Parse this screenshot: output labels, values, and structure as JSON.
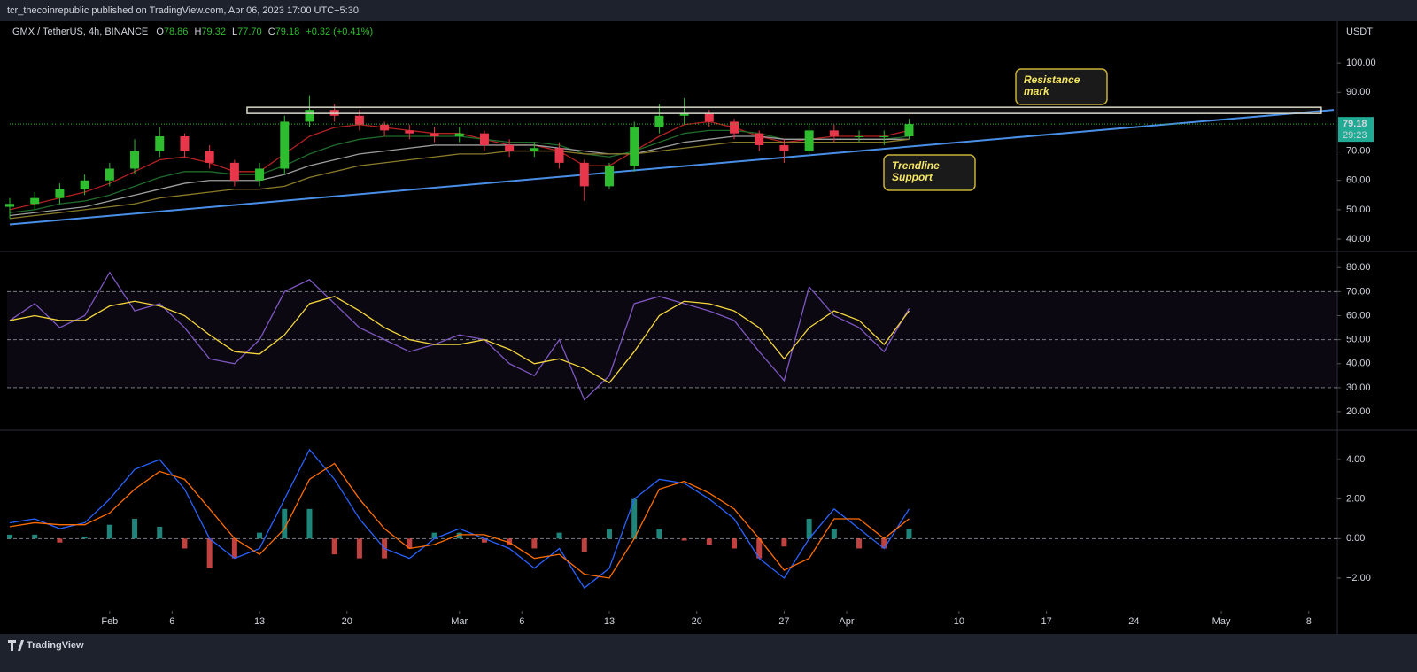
{
  "header": {
    "text": "tcr_thecoinrepublic published on TradingView.com, Apr 06, 2023 17:00 UTC+5:30"
  },
  "footer": {
    "brand": "TradingView"
  },
  "chart_data": [
    {
      "type": "candlestick",
      "symbol": "GMX / TetherUS, 4h, BINANCE",
      "ohlc_legend": [
        {
          "key": "O",
          "value": "78.86"
        },
        {
          "key": "H",
          "value": "79.32"
        },
        {
          "key": "L",
          "value": "77.70"
        },
        {
          "key": "C",
          "value": "79.18"
        }
      ],
      "change": "+0.32 (+0.41%)",
      "currency": "USDT",
      "last_price": 79.18,
      "countdown": "29:23",
      "x": [
        "2023-01-24",
        "2023-01-26",
        "2023-01-28",
        "2023-01-30",
        "2023-02-01",
        "2023-02-03",
        "2023-02-05",
        "2023-02-07",
        "2023-02-09",
        "2023-02-11",
        "2023-02-13",
        "2023-02-15",
        "2023-02-17",
        "2023-02-19",
        "2023-02-21",
        "2023-02-23",
        "2023-02-25",
        "2023-02-27",
        "2023-03-01",
        "2023-03-03",
        "2023-03-05",
        "2023-03-07",
        "2023-03-09",
        "2023-03-11",
        "2023-03-13",
        "2023-03-15",
        "2023-03-17",
        "2023-03-19",
        "2023-03-21",
        "2023-03-23",
        "2023-03-25",
        "2023-03-27",
        "2023-03-29",
        "2023-03-31",
        "2023-04-02",
        "2023-04-04",
        "2023-04-06"
      ],
      "open": [
        51,
        52,
        54,
        57,
        60,
        64,
        70,
        75,
        70,
        66,
        60,
        64,
        80,
        84,
        82,
        79,
        77,
        76,
        75,
        76,
        72,
        70,
        71,
        66,
        58,
        65,
        78,
        82,
        83,
        80,
        76,
        72,
        70,
        77,
        75,
        75,
        75
      ],
      "high": [
        54,
        56,
        59,
        62,
        66,
        74,
        78,
        76,
        72,
        67,
        66,
        82,
        89,
        86,
        84,
        80,
        79,
        78,
        78,
        77,
        74,
        73,
        73,
        67,
        66,
        80,
        86,
        88,
        84,
        81,
        77,
        74,
        79,
        79,
        77,
        77,
        81
      ],
      "low": [
        47,
        50,
        52,
        55,
        58,
        62,
        68,
        68,
        64,
        58,
        58,
        62,
        78,
        80,
        77,
        75,
        74,
        73,
        73,
        70,
        68,
        68,
        64,
        53,
        57,
        63,
        76,
        79,
        78,
        74,
        70,
        66,
        69,
        73,
        73,
        72,
        74
      ],
      "close": [
        52,
        54,
        57,
        60,
        64,
        70,
        75,
        70,
        66,
        60,
        64,
        80,
        84,
        82,
        79,
        77,
        76,
        75,
        76,
        72,
        70,
        71,
        66,
        58,
        65,
        78,
        82,
        83,
        80,
        76,
        72,
        70,
        77,
        75,
        75,
        75,
        79.18
      ],
      "up_color": "#2ebd2e",
      "down_color": "#e8374a",
      "series": [
        {
          "color": "#b22222",
          "values": [
            50,
            52,
            54,
            56,
            59,
            63,
            67,
            68,
            66,
            63,
            63,
            69,
            75,
            78,
            79,
            78,
            77,
            76,
            76,
            74,
            72,
            72,
            70,
            65,
            65,
            70,
            75,
            79,
            80,
            78,
            75,
            73,
            74,
            75,
            75,
            75,
            77
          ]
        },
        {
          "color": "#1f6b2a",
          "values": [
            49,
            50,
            52,
            53,
            55,
            58,
            61,
            63,
            63,
            62,
            62,
            65,
            69,
            72,
            74,
            75,
            75,
            75,
            75,
            74,
            73,
            73,
            72,
            69,
            68,
            70,
            73,
            76,
            77,
            77,
            76,
            74,
            74,
            74,
            74,
            74,
            75
          ]
        },
        {
          "color": "#9e9e9e",
          "values": [
            48,
            49,
            50,
            51,
            53,
            55,
            57,
            59,
            60,
            60,
            60,
            62,
            65,
            67,
            69,
            70,
            71,
            72,
            72,
            72,
            72,
            72,
            71,
            70,
            69,
            69,
            71,
            73,
            74,
            75,
            75,
            74,
            74,
            74,
            74,
            74,
            74
          ]
        },
        {
          "color": "#8a7a2a",
          "values": [
            47,
            48,
            49,
            50,
            51,
            52,
            54,
            55,
            56,
            57,
            57,
            58,
            61,
            63,
            65,
            66,
            67,
            68,
            69,
            69,
            70,
            70,
            70,
            69,
            69,
            69,
            70,
            71,
            72,
            73,
            73,
            73,
            73,
            73,
            73,
            73,
            74
          ]
        }
      ],
      "trendline": {
        "x": [
          "2023-01-24",
          "2023-05-10"
        ],
        "values": [
          45,
          84
        ],
        "color": "#4a8fe7"
      },
      "resistance_zone": {
        "x": [
          "2023-02-12",
          "2023-05-09"
        ],
        "values": [
          82.8,
          84.9
        ]
      },
      "annotations": [
        {
          "lines": [
            "Resistance",
            "mark"
          ]
        },
        {
          "lines": [
            "Trendline",
            "Support"
          ]
        }
      ],
      "xlim": [
        "2023-01-24",
        "2023-05-10"
      ],
      "ylim": [
        36.4,
        113
      ],
      "yticks": [
        {
          "value": 40,
          "label": "40.00"
        },
        {
          "value": 50,
          "label": "50.00"
        },
        {
          "value": 60,
          "label": "60.00"
        },
        {
          "value": 70,
          "label": "70.00"
        },
        {
          "value": 90,
          "label": "90.00"
        },
        {
          "value": 100,
          "label": "100.00"
        }
      ]
    },
    {
      "type": "line",
      "series": [
        {
          "color": "#7e57c2",
          "values": [
            58,
            65,
            55,
            60,
            78,
            62,
            65,
            55,
            42,
            40,
            50,
            70,
            75,
            65,
            55,
            50,
            45,
            48,
            52,
            50,
            40,
            35,
            50,
            25,
            35,
            65,
            68,
            65,
            62,
            58,
            45,
            33,
            72,
            60,
            55,
            45,
            63
          ]
        },
        {
          "color": "#f5d63d",
          "values": [
            58,
            60,
            58,
            58,
            64,
            66,
            64,
            60,
            52,
            45,
            44,
            52,
            65,
            68,
            62,
            55,
            50,
            48,
            48,
            50,
            46,
            40,
            42,
            38,
            32,
            45,
            60,
            66,
            65,
            62,
            55,
            42,
            55,
            62,
            58,
            48,
            62
          ]
        }
      ],
      "levels": [
        70,
        50,
        30
      ],
      "ylim": [
        13,
        86
      ],
      "yticks": [
        {
          "value": 20,
          "label": "20.00"
        },
        {
          "value": 30,
          "label": "30.00"
        },
        {
          "value": 40,
          "label": "40.00"
        },
        {
          "value": 50,
          "label": "50.00"
        },
        {
          "value": 60,
          "label": "60.00"
        },
        {
          "value": 70,
          "label": "70.00"
        },
        {
          "value": 80,
          "label": "80.00"
        }
      ]
    },
    {
      "type": "macd",
      "series": [
        {
          "color": "#2962ff",
          "values": [
            0.8,
            1,
            0.5,
            0.8,
            2,
            3.5,
            4,
            2.5,
            0,
            -1,
            -0.5,
            2,
            4.5,
            3,
            1,
            -0.5,
            -1,
            0,
            0.5,
            0,
            -0.5,
            -1.5,
            -0.5,
            -2.5,
            -1.5,
            2,
            3,
            2.8,
            2,
            1,
            -1,
            -2,
            0,
            1.5,
            0.5,
            -0.5,
            1.5
          ]
        },
        {
          "color": "#ff6d00",
          "values": [
            0.6,
            0.8,
            0.7,
            0.7,
            1.3,
            2.5,
            3.4,
            3,
            1.5,
            0,
            -0.8,
            0.5,
            3,
            3.8,
            2,
            0.5,
            -0.5,
            -0.3,
            0.2,
            0.2,
            -0.2,
            -1,
            -0.8,
            -1.8,
            -2,
            0,
            2.5,
            2.9,
            2.3,
            1.5,
            0,
            -1.6,
            -1,
            1,
            1,
            0,
            1
          ]
        }
      ],
      "histogram": {
        "up_color": "#26a69a",
        "down_color": "#ef5350",
        "values": [
          0.2,
          0.2,
          -0.2,
          0.1,
          0.7,
          1,
          0.6,
          -0.5,
          -1.5,
          -1,
          0.3,
          1.5,
          1.5,
          -0.8,
          -1,
          -1,
          -0.5,
          0.3,
          0.3,
          -0.2,
          -0.3,
          -0.5,
          0.3,
          -0.7,
          0.5,
          2,
          0.5,
          -0.1,
          -0.3,
          -0.5,
          -1,
          -0.4,
          1,
          0.5,
          -0.5,
          -0.5,
          0.5
        ]
      },
      "levels": [
        0
      ],
      "ylim": [
        -3.57,
        5.39
      ],
      "yticks": [
        {
          "value": -2,
          "label": "−2.00"
        },
        {
          "value": 0,
          "label": "0.00"
        },
        {
          "value": 2,
          "label": "2.00"
        },
        {
          "value": 4,
          "label": "4.00"
        }
      ],
      "xticks": [
        {
          "value": "2023-02-01",
          "label": "Feb"
        },
        {
          "value": "2023-02-06",
          "label": "6"
        },
        {
          "value": "2023-02-13",
          "label": "13"
        },
        {
          "value": "2023-02-20",
          "label": "20"
        },
        {
          "value": "2023-03-01",
          "label": "Mar"
        },
        {
          "value": "2023-03-06",
          "label": "6"
        },
        {
          "value": "2023-03-13",
          "label": "13"
        },
        {
          "value": "2023-03-20",
          "label": "20"
        },
        {
          "value": "2023-03-27",
          "label": "27"
        },
        {
          "value": "2023-04-01",
          "label": "Apr"
        },
        {
          "value": "2023-04-10",
          "label": "10"
        },
        {
          "value": "2023-04-17",
          "label": "17"
        },
        {
          "value": "2023-04-24",
          "label": "24"
        },
        {
          "value": "2023-05-01",
          "label": "May"
        },
        {
          "value": "2023-05-08",
          "label": "8"
        }
      ]
    }
  ]
}
